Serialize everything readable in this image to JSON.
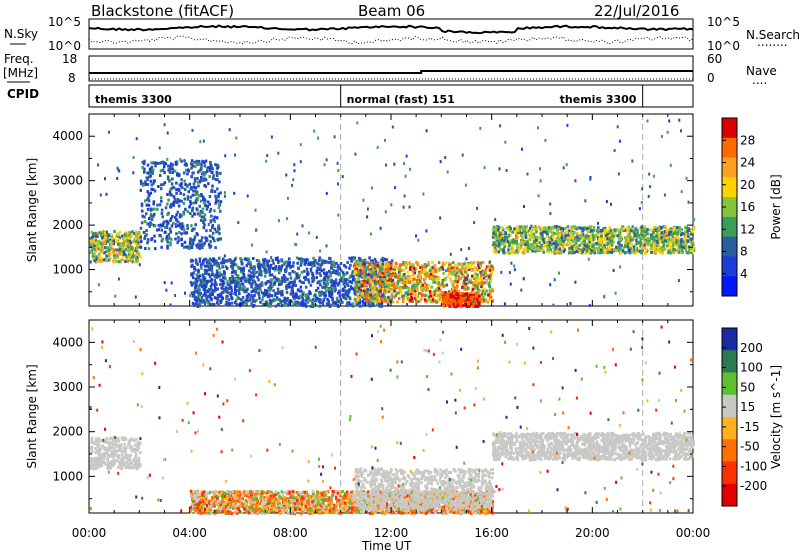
{
  "header": {
    "station": "Blackstone (fitACF)",
    "beam": "Beam 06",
    "date": "22/Jul/2016"
  },
  "nsky": {
    "left_label": "N.Sky",
    "left_ticks": [
      "10^5",
      "10^0"
    ],
    "right_ticks": [
      "10^5",
      "10^0"
    ],
    "right_label": "N.Search",
    "right_label_dots": "........",
    "trace_sky_color": "#000000",
    "trace_search_color": "#000000"
  },
  "freq": {
    "left_label_1": "Freq.",
    "left_label_2": "[MHz]",
    "left_ticks": [
      "18",
      "8"
    ],
    "right_ticks": [
      "60",
      "0"
    ],
    "right_label": "Nave",
    "right_label_dots": "....",
    "cpid_label": "CPID"
  },
  "cpid_segments": [
    {
      "label": "themis 3300",
      "start_hour": 0,
      "end_hour": 10
    },
    {
      "label": "normal (fast) 151",
      "start_hour": 10,
      "end_hour": 22
    },
    {
      "label": "themis 3300",
      "start_hour": 22,
      "end_hour": 24
    }
  ],
  "x_axis": {
    "ticks": [
      "00:00",
      "04:00",
      "08:00",
      "12:00",
      "16:00",
      "20:00",
      "00:00"
    ],
    "label": "Time UT",
    "range_hours": [
      0,
      24
    ]
  },
  "colorbars": {
    "power": {
      "label": "Power [dB]",
      "ticks": [
        "28",
        "24",
        "20",
        "16",
        "12",
        "8",
        "4"
      ],
      "colors": [
        "#dd0000",
        "#ff6a00",
        "#ffa020",
        "#ffd200",
        "#86c43c",
        "#3c9c5c",
        "#2a5ea0",
        "#1e3cd8",
        "#0018ff"
      ]
    },
    "velocity": {
      "label": "Velocity [m s^-1]",
      "ticks": [
        "200",
        "100",
        "50",
        "15",
        "-15",
        "-50",
        "-100",
        "-200"
      ],
      "colors": [
        "#1a2aa0",
        "#2e7a50",
        "#5cc030",
        "#c8c8c4",
        "#ffb020",
        "#ff7000",
        "#ff3000",
        "#e00000"
      ]
    }
  },
  "chart_data": [
    {
      "type": "heatmap",
      "title": "",
      "xlabel": "Time UT",
      "ylabel": "Slant Range [km]",
      "xlim_hours": [
        0,
        24
      ],
      "ylim_km": [
        180,
        4500
      ],
      "yticks_km": [
        1000,
        2000,
        3000,
        4000
      ],
      "colorbar_label": "Power [dB]",
      "colorbar_ticks": [
        28,
        24,
        20,
        16,
        12,
        8,
        4
      ],
      "features": [
        {
          "name": "evening band",
          "time_hours": [
            0,
            2
          ],
          "range_km": [
            1200,
            1900
          ],
          "power_db": [
            8,
            24
          ]
        },
        {
          "name": "rising arc",
          "time_hours": [
            2,
            5.2
          ],
          "range_km": [
            1500,
            3500
          ],
          "power_db": [
            4,
            12
          ]
        },
        {
          "name": "low-range echoes",
          "time_hours": [
            4,
            12
          ],
          "range_km": [
            200,
            1300
          ],
          "power_db": [
            4,
            12
          ]
        },
        {
          "name": "afternoon band",
          "time_hours": [
            10.5,
            16
          ],
          "range_km": [
            300,
            1200
          ],
          "power_db": [
            10,
            30
          ]
        },
        {
          "name": "intense patch",
          "time_hours": [
            14,
            15.5
          ],
          "range_km": [
            200,
            500
          ],
          "power_db": [
            26,
            30
          ]
        },
        {
          "name": "late band",
          "time_hours": [
            16,
            24
          ],
          "range_km": [
            1400,
            2000
          ],
          "power_db": [
            8,
            22
          ]
        }
      ]
    },
    {
      "type": "heatmap",
      "title": "",
      "xlabel": "Time UT",
      "ylabel": "Slant Range [km]",
      "xlim_hours": [
        0,
        24
      ],
      "ylim_km": [
        180,
        4500
      ],
      "yticks_km": [
        1000,
        2000,
        3000,
        4000
      ],
      "colorbar_label": "Velocity [m s^-1]",
      "colorbar_ticks": [
        200,
        100,
        50,
        15,
        -15,
        -50,
        -100,
        -200
      ],
      "features": [
        {
          "name": "ground scatter band",
          "time_hours": [
            0,
            2
          ],
          "range_km": [
            1200,
            1900
          ],
          "velocity_ms": [
            -15,
            15
          ]
        },
        {
          "name": "late ground scatter",
          "time_hours": [
            16,
            24
          ],
          "range_km": [
            1400,
            2000
          ],
          "velocity_ms": [
            -15,
            15
          ]
        },
        {
          "name": "near-range flows",
          "time_hours": [
            4,
            16
          ],
          "range_km": [
            200,
            700
          ],
          "velocity_ms": [
            -100,
            50
          ]
        },
        {
          "name": "ionospheric band",
          "time_hours": [
            10.5,
            16
          ],
          "range_km": [
            300,
            1200
          ],
          "velocity_ms": [
            -15,
            15
          ]
        }
      ]
    }
  ]
}
